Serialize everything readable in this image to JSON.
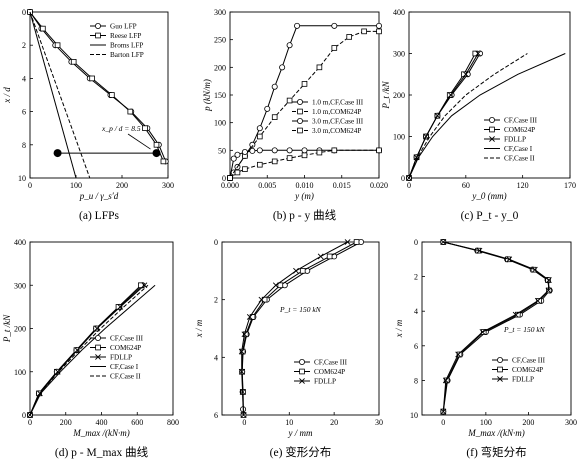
{
  "figure": {
    "panels": [
      {
        "id": "a",
        "caption": "(a) LFPs",
        "xlabel": "p_u / γ_s′d",
        "ylabel": "x / d",
        "xlim": [
          0,
          300
        ],
        "ylim": [
          10,
          0
        ],
        "xticks": [
          0,
          100,
          200,
          300
        ],
        "yticks": [
          0,
          2,
          4,
          6,
          8,
          10
        ],
        "legend": [
          "Guo LFP",
          "Reese LFP",
          "Broms LFP",
          "Barton LFP"
        ],
        "annotation": "x_p / d = 8.5"
      },
      {
        "id": "b",
        "caption": "(b) p - y 曲线",
        "xlabel": "y (m)",
        "ylabel": "p (kN/m)",
        "xlim": [
          0,
          0.02
        ],
        "ylim": [
          0,
          300
        ],
        "xticks": [
          0.0,
          0.005,
          0.01,
          0.015,
          0.02
        ],
        "xtick_labels": [
          "0.000",
          "0.005",
          "0.010",
          "0.015",
          "0.020"
        ],
        "yticks": [
          0,
          50,
          100,
          150,
          200,
          250,
          300
        ],
        "legend": [
          "1.0 m,CF,Case III",
          "1.0 m,COM624P",
          "3.0 m,CF,Case III",
          "3.0 m,COM624P"
        ]
      },
      {
        "id": "c",
        "caption": "(c) P_t - y_0",
        "xlabel": "y_0 (mm)",
        "ylabel": "P_t /kN",
        "xlim": [
          0,
          170
        ],
        "ylim": [
          0,
          400
        ],
        "xticks": [
          0,
          60,
          120,
          170
        ],
        "yticks": [
          0,
          100,
          200,
          300,
          400
        ],
        "legend": [
          "CF,Case III",
          "COM624P",
          "FDLLP",
          "CF,Case I",
          "CF,Case II"
        ]
      },
      {
        "id": "d",
        "caption": "(d) p - M_max 曲线",
        "xlabel": "M_max /(kN·m)",
        "ylabel": "P_t /kN",
        "xlim": [
          0,
          800
        ],
        "ylim": [
          0,
          400
        ],
        "xticks": [
          0,
          200,
          400,
          600,
          800
        ],
        "yticks": [
          0,
          100,
          200,
          300,
          400
        ],
        "legend": [
          "CF,Case III",
          "COM624P",
          "FDLLP",
          "CF,Case I",
          "CF,Case II"
        ]
      },
      {
        "id": "e",
        "caption": "(e) 变形分布",
        "xlabel": "y / mm",
        "ylabel": "x / m",
        "xlim": [
          -5,
          30
        ],
        "ylim": [
          6,
          0
        ],
        "xticks": [
          0,
          10,
          20,
          30
        ],
        "yticks": [
          0,
          2,
          4,
          6
        ],
        "legend": [
          "CF,Case III",
          "COM624P",
          "FDLLP"
        ],
        "annotation": "P_t = 150 kN"
      },
      {
        "id": "f",
        "caption": "(f) 弯矩分布",
        "xlabel": "M_max /(kN·m)",
        "ylabel": "x / m",
        "xlim": [
          -50,
          300
        ],
        "ylim": [
          10,
          0
        ],
        "xticks": [
          0,
          100,
          200,
          300
        ],
        "yticks": [
          0,
          2,
          4,
          6,
          8,
          10
        ],
        "legend": [
          "CF,Case III",
          "COM624P",
          "FDLLP"
        ],
        "annotation": "P_t = 150 kN"
      }
    ]
  },
  "chart_data": [
    {
      "type": "line",
      "panel": "a",
      "series": [
        {
          "name": "Guo LFP",
          "x": [
            0,
            25,
            55,
            90,
            130,
            175,
            220,
            255,
            280,
            295
          ],
          "y": [
            0,
            1,
            2,
            3,
            4,
            5,
            6,
            7,
            8,
            9
          ]
        },
        {
          "name": "Reese LFP",
          "x": [
            0,
            28,
            60,
            95,
            135,
            178,
            218,
            250,
            275,
            290
          ],
          "y": [
            0,
            1,
            2,
            3,
            4,
            5,
            6,
            7,
            8,
            9
          ]
        },
        {
          "name": "Broms LFP",
          "x": [
            0,
            100
          ],
          "y": [
            0,
            10
          ]
        },
        {
          "name": "Barton LFP",
          "x": [
            0,
            130
          ],
          "y": [
            0,
            10
          ]
        }
      ],
      "annotation": {
        "text": "x_p / d = 8.5",
        "line_y": 8.5,
        "line_x": [
          60,
          275
        ]
      }
    },
    {
      "type": "line",
      "panel": "b",
      "series": [
        {
          "name": "1.0 m,CF,Case III",
          "x": [
            0,
            0.0005,
            0.001,
            0.002,
            0.003,
            0.004,
            0.005,
            0.006,
            0.007,
            0.008,
            0.009,
            0.014,
            0.02
          ],
          "y": [
            0,
            10,
            20,
            40,
            60,
            90,
            125,
            165,
            200,
            240,
            275,
            275,
            275
          ]
        },
        {
          "name": "1.0 m,COM624P",
          "x": [
            0,
            0.002,
            0.004,
            0.006,
            0.008,
            0.01,
            0.012,
            0.014,
            0.016,
            0.018,
            0.02
          ],
          "y": [
            0,
            40,
            75,
            110,
            140,
            170,
            200,
            235,
            255,
            265,
            265
          ]
        },
        {
          "name": "3.0 m,CF,Case III",
          "x": [
            0,
            0.0005,
            0.001,
            0.002,
            0.003,
            0.004,
            0.006,
            0.008,
            0.01,
            0.012,
            0.014,
            0.02
          ],
          "y": [
            0,
            35,
            42,
            47,
            49,
            50,
            50,
            50,
            50,
            50,
            50,
            50
          ]
        },
        {
          "name": "3.0 m,COM624P",
          "x": [
            0,
            0.001,
            0.002,
            0.004,
            0.006,
            0.008,
            0.01,
            0.012,
            0.014,
            0.02
          ],
          "y": [
            0,
            10,
            16,
            24,
            30,
            36,
            41,
            46,
            50,
            50
          ]
        }
      ]
    },
    {
      "type": "line",
      "panel": "c",
      "series": [
        {
          "name": "CF,Case III",
          "x": [
            0,
            8,
            18,
            30,
            45,
            62,
            75
          ],
          "y": [
            0,
            50,
            100,
            150,
            200,
            250,
            300
          ]
        },
        {
          "name": "COM624P",
          "x": [
            0,
            8,
            18,
            30,
            43,
            58,
            70
          ],
          "y": [
            0,
            50,
            100,
            150,
            200,
            250,
            300
          ]
        },
        {
          "name": "FDLLP",
          "x": [
            0,
            8,
            18,
            30,
            44,
            60,
            73
          ],
          "y": [
            0,
            50,
            100,
            150,
            200,
            250,
            300
          ]
        },
        {
          "name": "CF,Case I",
          "x": [
            0,
            10,
            25,
            45,
            75,
            115,
            165
          ],
          "y": [
            0,
            50,
            100,
            150,
            200,
            250,
            300
          ]
        },
        {
          "name": "CF,Case II",
          "x": [
            0,
            9,
            22,
            38,
            60,
            90,
            125
          ],
          "y": [
            0,
            50,
            100,
            150,
            200,
            250,
            300
          ]
        }
      ]
    },
    {
      "type": "line",
      "panel": "d",
      "series": [
        {
          "name": "CF,Case III",
          "x": [
            0,
            50,
            150,
            260,
            370,
            500,
            630
          ],
          "y": [
            0,
            50,
            100,
            150,
            200,
            250,
            300
          ]
        },
        {
          "name": "COM624P",
          "x": [
            0,
            50,
            150,
            260,
            370,
            495,
            620
          ],
          "y": [
            0,
            50,
            100,
            150,
            200,
            250,
            300
          ]
        },
        {
          "name": "FDLLP",
          "x": [
            0,
            55,
            155,
            265,
            375,
            505,
            640
          ],
          "y": [
            0,
            50,
            100,
            150,
            200,
            250,
            300
          ]
        },
        {
          "name": "CF,Case I",
          "x": [
            0,
            60,
            170,
            290,
            420,
            560,
            700
          ],
          "y": [
            0,
            50,
            100,
            150,
            200,
            250,
            300
          ]
        },
        {
          "name": "CF,Case II",
          "x": [
            0,
            55,
            160,
            275,
            395,
            525,
            660
          ],
          "y": [
            0,
            50,
            100,
            150,
            200,
            250,
            300
          ]
        }
      ]
    },
    {
      "type": "line",
      "panel": "e",
      "series": [
        {
          "name": "CF,Case III",
          "x": [
            26,
            20,
            14,
            9,
            5,
            2,
            0.5,
            -0.3,
            -0.5,
            -0.4,
            -0.3
          ],
          "y": [
            0,
            0.5,
            1,
            1.5,
            2,
            2.6,
            3.2,
            3.8,
            4.5,
            5.2,
            5.8
          ]
        },
        {
          "name": "COM624P",
          "x": [
            25,
            19,
            13,
            8,
            4.5,
            1.8,
            0.3,
            -0.4,
            -0.5,
            -0.3,
            -0.2
          ],
          "y": [
            0,
            0.5,
            1,
            1.5,
            2,
            2.6,
            3.2,
            3.8,
            4.5,
            5.2,
            6
          ]
        },
        {
          "name": "FDLLP",
          "x": [
            23,
            17,
            11.5,
            7,
            3.8,
            1.2,
            0,
            -0.6,
            -0.6,
            -0.4,
            -0.2
          ],
          "y": [
            0,
            0.5,
            1,
            1.5,
            2,
            2.6,
            3.2,
            3.8,
            4.5,
            5.2,
            6
          ]
        }
      ]
    },
    {
      "type": "line",
      "panel": "f",
      "series": [
        {
          "name": "CF,Case III",
          "x": [
            0,
            80,
            150,
            210,
            245,
            250,
            230,
            180,
            100,
            40,
            10,
            0
          ],
          "y": [
            0,
            0.5,
            1,
            1.6,
            2.2,
            2.8,
            3.4,
            4.2,
            5.2,
            6.5,
            8,
            9.8
          ]
        },
        {
          "name": "COM624P",
          "x": [
            0,
            82,
            152,
            212,
            246,
            248,
            225,
            175,
            95,
            38,
            8,
            0
          ],
          "y": [
            0,
            0.5,
            1,
            1.6,
            2.2,
            2.8,
            3.4,
            4.2,
            5.2,
            6.5,
            8,
            9.8
          ]
        },
        {
          "name": "FDLLP",
          "x": [
            0,
            85,
            155,
            215,
            248,
            247,
            222,
            170,
            92,
            35,
            6,
            0
          ],
          "y": [
            0,
            0.5,
            1,
            1.6,
            2.2,
            2.8,
            3.4,
            4.2,
            5.2,
            6.5,
            8,
            9.8
          ]
        }
      ]
    }
  ]
}
